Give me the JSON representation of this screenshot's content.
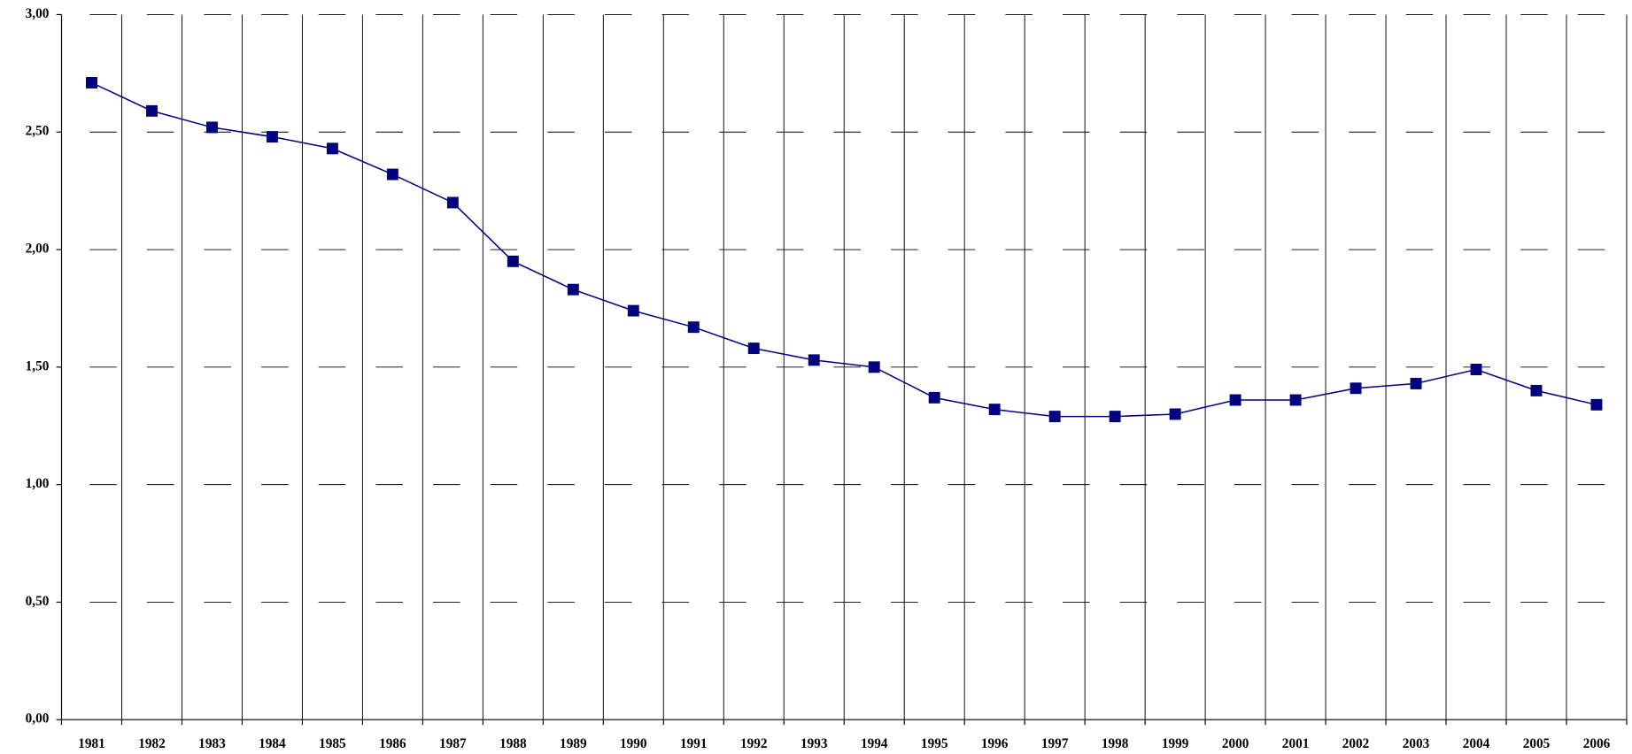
{
  "chart_data": {
    "type": "line",
    "categories": [
      "1981",
      "1982",
      "1983",
      "1984",
      "1985",
      "1986",
      "1987",
      "1988",
      "1989",
      "1990",
      "1991",
      "1992",
      "1993",
      "1994",
      "1995",
      "1996",
      "1997",
      "1998",
      "1999",
      "2000",
      "2001",
      "2002",
      "2003",
      "2004",
      "2005",
      "2006"
    ],
    "series": [
      {
        "color": "#000080",
        "values": [
          2.71,
          2.59,
          2.52,
          2.48,
          2.43,
          2.32,
          2.2,
          1.95,
          1.83,
          1.74,
          1.67,
          1.58,
          1.53,
          1.5,
          1.37,
          1.32,
          1.29,
          1.29,
          1.3,
          1.36,
          1.36,
          1.41,
          1.43,
          1.49,
          1.4,
          1.34
        ]
      }
    ],
    "ylim": [
      0,
      3
    ],
    "yticks": [
      {
        "value": 0,
        "label": "0,00"
      },
      {
        "value": 0.5,
        "label": "0,50"
      },
      {
        "value": 1,
        "label": "1,00"
      },
      {
        "value": 1.5,
        "label": "1,50"
      },
      {
        "value": 2,
        "label": "2,00"
      },
      {
        "value": 2.5,
        "label": "2,50"
      },
      {
        "value": 3,
        "label": "3,00"
      }
    ],
    "grid": true
  }
}
